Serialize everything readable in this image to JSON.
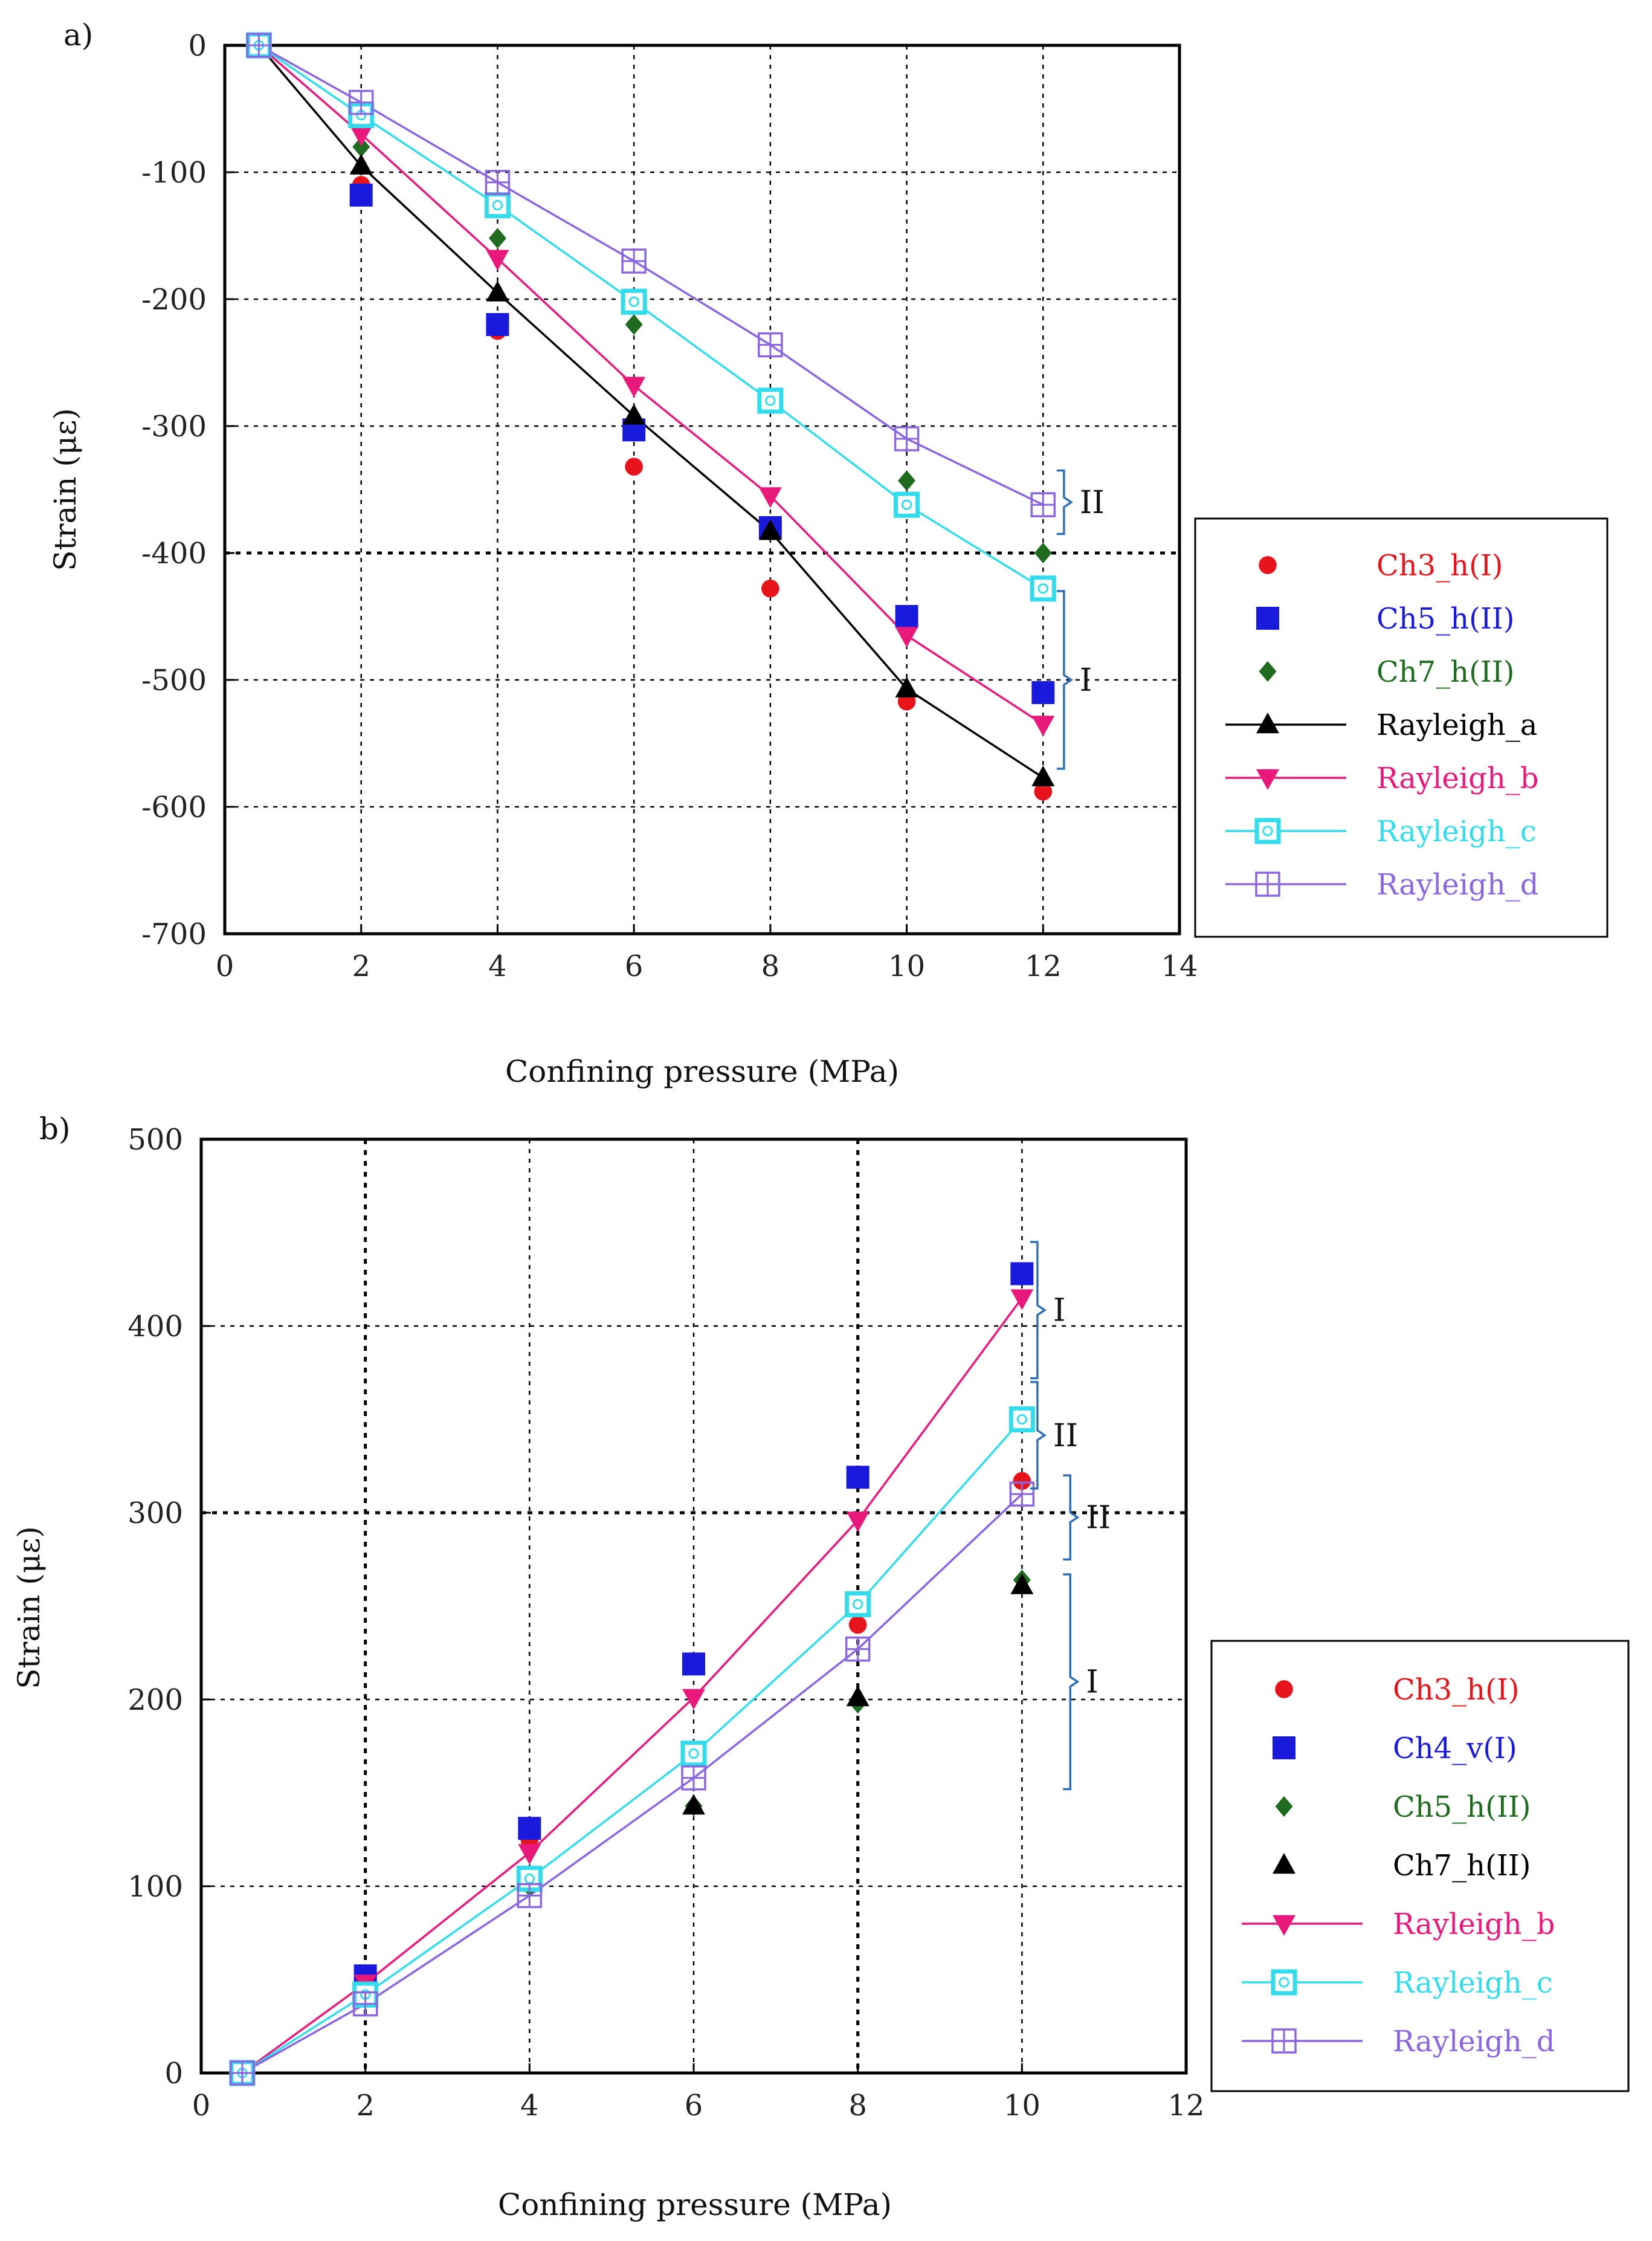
{
  "chart_data": [
    {
      "type": "scatter",
      "panel_label": "a)",
      "title": "",
      "xlabel": "Confining pressure (MPa)",
      "ylabel": "Strain (με)",
      "xlim": [
        0,
        14
      ],
      "ylim": [
        -700,
        0
      ],
      "xticks": [
        0,
        2,
        4,
        6,
        8,
        10,
        12,
        14
      ],
      "yticks": [
        0,
        -100,
        -200,
        -300,
        -400,
        -500,
        -600,
        -700
      ],
      "grid": true,
      "legend_position": "right",
      "series": [
        {
          "name": "Ch3_h(I)",
          "marker": "circle",
          "color": "#e8141c",
          "line": false,
          "x": [
            0.5,
            2,
            4,
            6,
            8,
            10,
            12
          ],
          "y": [
            0,
            -110,
            -225,
            -332,
            -428,
            -517,
            -588
          ]
        },
        {
          "name": "Ch5_h(II)",
          "marker": "square",
          "color": "#1a1adc",
          "line": false,
          "x": [
            0.5,
            2,
            4,
            6,
            8,
            10,
            12
          ],
          "y": [
            0,
            -118,
            -220,
            -303,
            -380,
            -450,
            -510
          ]
        },
        {
          "name": "Ch7_h(II)",
          "marker": "diamond",
          "color": "#1f6b1f",
          "line": false,
          "x": [
            0.5,
            2,
            4,
            6,
            8,
            10,
            12
          ],
          "y": [
            0,
            -80,
            -152,
            -220,
            -278,
            -343,
            -400
          ]
        },
        {
          "name": "Rayleigh_a",
          "marker": "triangle-up",
          "color": "#000000",
          "line": true,
          "x": [
            0.5,
            2,
            4,
            6,
            8,
            10,
            12
          ],
          "y": [
            0,
            -95,
            -195,
            -292,
            -383,
            -507,
            -577
          ]
        },
        {
          "name": "Rayleigh_b",
          "marker": "triangle-down",
          "color": "#e8197a",
          "line": true,
          "x": [
            0.5,
            2,
            4,
            6,
            8,
            10,
            12
          ],
          "y": [
            0,
            -70,
            -168,
            -268,
            -355,
            -465,
            -535
          ]
        },
        {
          "name": "Rayleigh_c",
          "marker": "open-square-dot",
          "color": "#33dcea",
          "line": true,
          "x": [
            0.5,
            2,
            4,
            6,
            8,
            10,
            12
          ],
          "y": [
            0,
            -55,
            -126,
            -202,
            -280,
            -362,
            -428
          ]
        },
        {
          "name": "Rayleigh_d",
          "marker": "open-square-cross",
          "color": "#8a66e0",
          "line": true,
          "x": [
            0.5,
            2,
            4,
            6,
            8,
            10,
            12
          ],
          "y": [
            0,
            -45,
            -108,
            -170,
            -236,
            -310,
            -362
          ]
        }
      ],
      "annotations": [
        {
          "text": "II",
          "x": 12.2,
          "y_range": [
            -335,
            -385
          ]
        },
        {
          "text": "I",
          "x": 12.2,
          "y_range": [
            -430,
            -570
          ]
        }
      ]
    },
    {
      "type": "scatter",
      "panel_label": "b)",
      "title": "",
      "xlabel": "Confining pressure (MPa)",
      "ylabel": "Strain (με)",
      "xlim": [
        0,
        12
      ],
      "ylim": [
        0,
        500
      ],
      "xticks": [
        0,
        2,
        4,
        6,
        8,
        10,
        12
      ],
      "yticks": [
        0,
        100,
        200,
        300,
        400,
        500
      ],
      "grid": true,
      "legend_position": "right",
      "series": [
        {
          "name": "Ch3_h(I)",
          "marker": "circle",
          "color": "#e8141c",
          "line": false,
          "x": [
            0.5,
            2,
            4,
            6,
            8,
            10
          ],
          "y": [
            0,
            50,
            125,
            218,
            240,
            317
          ]
        },
        {
          "name": "Ch4_v(I)",
          "marker": "square",
          "color": "#1a1adc",
          "line": false,
          "x": [
            0.5,
            2,
            4,
            6,
            8,
            10
          ],
          "y": [
            0,
            52,
            131,
            219,
            319,
            428
          ]
        },
        {
          "name": "Ch5_h(II)",
          "marker": "diamond",
          "color": "#1f6b1f",
          "line": false,
          "x": [
            0.5,
            2,
            4,
            6,
            8,
            10
          ],
          "y": [
            0,
            40,
            100,
            143,
            198,
            264
          ]
        },
        {
          "name": "Ch7_h(II)",
          "marker": "triangle-up",
          "color": "#000000",
          "line": false,
          "x": [
            0.5,
            2,
            4,
            6,
            8,
            10
          ],
          "y": [
            0,
            42,
            102,
            143,
            201,
            261
          ]
        },
        {
          "name": "Rayleigh_b",
          "marker": "triangle-down",
          "color": "#e8197a",
          "line": true,
          "x": [
            0.5,
            2,
            4,
            6,
            8,
            10
          ],
          "y": [
            0,
            48,
            118,
            201,
            296,
            415
          ]
        },
        {
          "name": "Rayleigh_c",
          "marker": "open-square-dot",
          "color": "#33dcea",
          "line": true,
          "x": [
            0.5,
            2,
            4,
            6,
            8,
            10
          ],
          "y": [
            0,
            42,
            104,
            171,
            251,
            350
          ]
        },
        {
          "name": "Rayleigh_d",
          "marker": "open-square-cross",
          "color": "#8a66e0",
          "line": true,
          "x": [
            0.5,
            2,
            4,
            6,
            8,
            10
          ],
          "y": [
            0,
            37,
            95,
            158,
            227,
            310
          ]
        }
      ],
      "annotations": [
        {
          "text": "I",
          "x": 10.1,
          "y_range": [
            372,
            445
          ]
        },
        {
          "text": "II",
          "x": 10.1,
          "y_range": [
            313,
            370
          ]
        },
        {
          "text": "II",
          "x": 10.5,
          "y_range": [
            275,
            320
          ]
        },
        {
          "text": "I",
          "x": 10.5,
          "y_range": [
            152,
            267
          ]
        }
      ]
    }
  ]
}
